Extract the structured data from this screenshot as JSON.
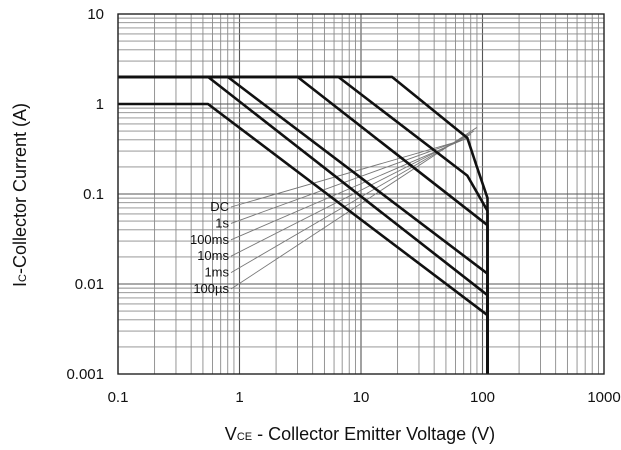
{
  "chart_data": {
    "type": "line",
    "title": "",
    "x_scale": "log",
    "y_scale": "log",
    "xlim": [
      0.1,
      1000
    ],
    "ylim": [
      0.001,
      10
    ],
    "grid": true,
    "x_ticks": [
      "0.1",
      "1",
      "10",
      "100",
      "1000"
    ],
    "y_ticks": [
      "10",
      "1",
      "0.1",
      "0.01",
      "0.001"
    ],
    "xlabel": {
      "main": "V",
      "sub": "CE",
      "rest": " - Collector Emitter Voltage (V)"
    },
    "ylabel": {
      "main": "I",
      "sub": "C",
      "rest": "-Collector Current (A)"
    },
    "legend_placement": "left, inside plot",
    "legend": [
      "DC",
      "1s",
      "100ms",
      "10ms",
      "1ms",
      "100µs"
    ],
    "series": [
      {
        "name": "DC",
        "points": [
          [
            0.1,
            1.0
          ],
          [
            0.55,
            1.0
          ],
          [
            110,
            0.0045
          ],
          [
            110,
            0.001
          ]
        ]
      },
      {
        "name": "1s",
        "points": [
          [
            0.1,
            2.0
          ],
          [
            0.55,
            2.0
          ],
          [
            110,
            0.0075
          ],
          [
            110,
            0.001
          ]
        ]
      },
      {
        "name": "100ms",
        "points": [
          [
            0.1,
            2.0
          ],
          [
            0.8,
            2.0
          ],
          [
            110,
            0.013
          ],
          [
            110,
            0.001
          ]
        ]
      },
      {
        "name": "10ms",
        "points": [
          [
            0.1,
            2.0
          ],
          [
            3.0,
            2.0
          ],
          [
            110,
            0.045
          ],
          [
            110,
            0.001
          ]
        ]
      },
      {
        "name": "1ms",
        "points": [
          [
            0.1,
            2.0
          ],
          [
            6.5,
            2.0
          ],
          [
            75,
            0.16
          ],
          [
            110,
            0.065
          ],
          [
            110,
            0.001
          ]
        ]
      },
      {
        "name": "100µs",
        "points": [
          [
            0.1,
            2.0
          ],
          [
            18,
            2.0
          ],
          [
            75,
            0.42
          ],
          [
            90,
            0.2
          ],
          [
            110,
            0.09
          ],
          [
            110,
            0.001
          ]
        ]
      }
    ],
    "leaders": [
      {
        "name": "DC",
        "to": [
          70,
          0.4
        ]
      },
      {
        "name": "1s",
        "to": [
          75,
          0.42
        ]
      },
      {
        "name": "100ms",
        "to": [
          75,
          0.42
        ]
      },
      {
        "name": "10ms",
        "to": [
          80,
          0.46
        ]
      },
      {
        "name": "1ms",
        "to": [
          85,
          0.5
        ]
      },
      {
        "name": "100µs",
        "to": [
          90,
          0.55
        ]
      }
    ]
  }
}
